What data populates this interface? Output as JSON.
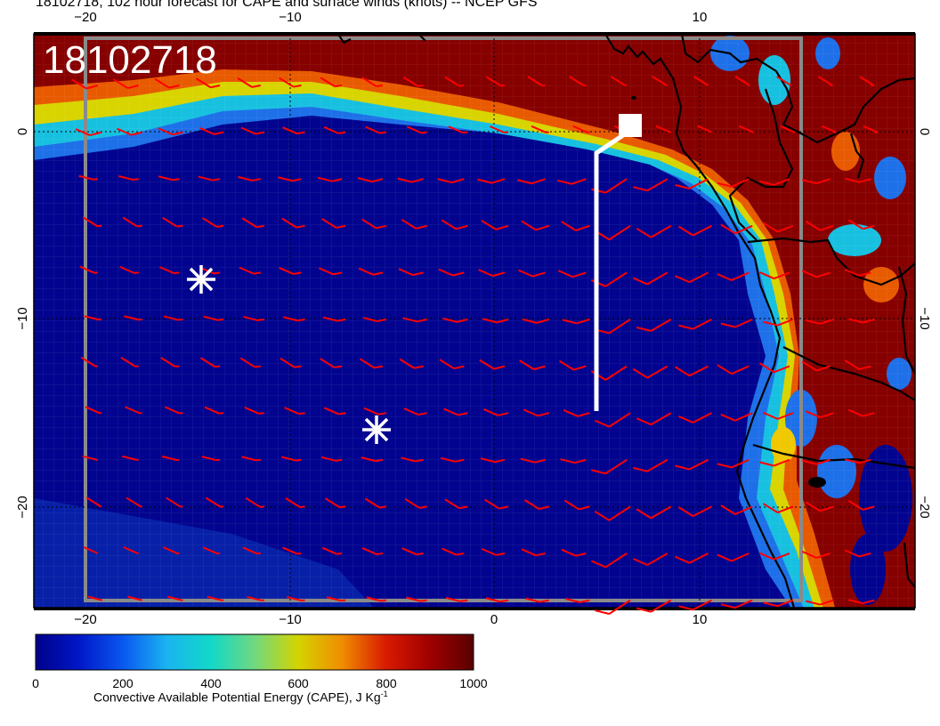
{
  "title": "18102718, 102 hour forecast for CAPE and surface winds (knots) -- NCEP GFS",
  "stamp": "18102718",
  "axes": {
    "x_ticks": [
      "−20",
      "−10",
      "0",
      "10"
    ],
    "y_ticks_left": [
      "0",
      "−10",
      "−20"
    ],
    "y_ticks_right": [
      "−10",
      "−20"
    ],
    "top_partial_tick": "10"
  },
  "colorbar": {
    "ticks": [
      "0",
      "200",
      "400",
      "600",
      "800",
      "1000"
    ],
    "label": "Convective Available Potential Energy (CAPE), J Kg",
    "label_exp": "-1",
    "colors": [
      "#00008a",
      "#0a3ee8",
      "#00d0d0",
      "#c8d400",
      "#e05a00",
      "#5a0000"
    ]
  },
  "markers": [
    {
      "name": "asterisk-marker-1"
    },
    {
      "name": "asterisk-marker-2"
    }
  ],
  "colors": {
    "ocean_low": "#02048f",
    "cape_high": "#860000",
    "wind_barbs": "#ff0000",
    "coast": "#000000",
    "track": "#ffffff"
  }
}
